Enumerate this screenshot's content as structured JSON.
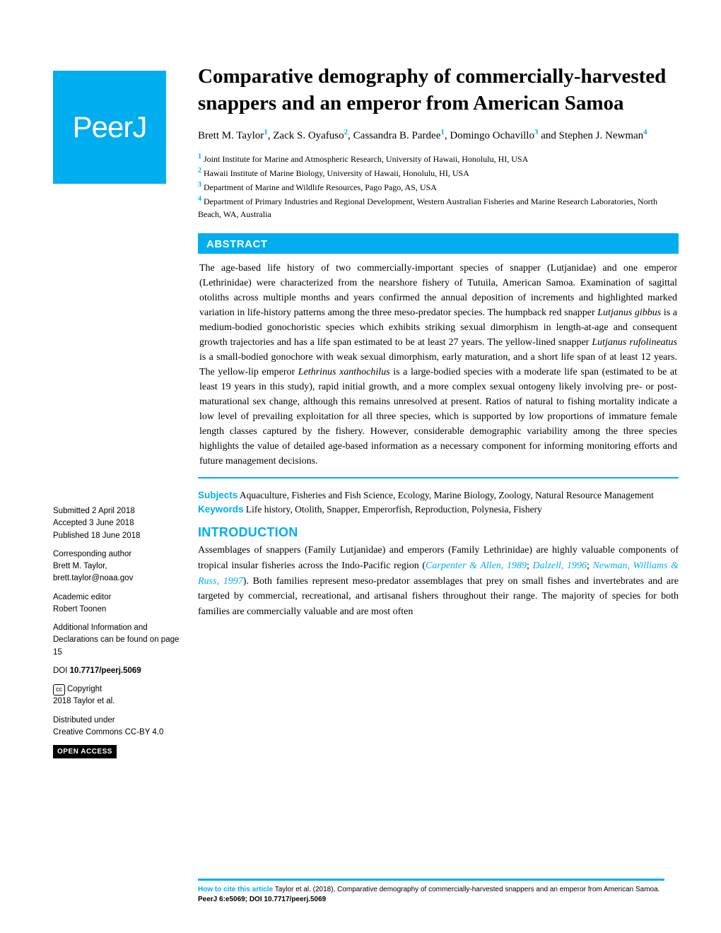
{
  "journal": {
    "logo_text": "PeerJ",
    "brand_color": "#00aeef"
  },
  "title": "Comparative demography of commercially-harvested snappers and an emperor from American Samoa",
  "authors_html": "Brett M. Taylor<sup>1</sup>, Zack S. Oyafuso<sup>2</sup>, Cassandra B. Pardee<sup>1</sup>, Domingo Ochavillo<sup>3</sup> and Stephen J. Newman<sup>4</sup>",
  "affiliations": [
    {
      "num": "1",
      "text": "Joint Institute for Marine and Atmospheric Research, University of Hawaii, Honolulu, HI, USA"
    },
    {
      "num": "2",
      "text": "Hawaii Institute of Marine Biology, University of Hawaii, Honolulu, HI, USA"
    },
    {
      "num": "3",
      "text": "Department of Marine and Wildlife Resources, Pago Pago, AS, USA"
    },
    {
      "num": "4",
      "text": "Department of Primary Industries and Regional Development, Western Australian Fisheries and Marine Research Laboratories, North Beach, WA, Australia"
    }
  ],
  "abstract": {
    "header": "ABSTRACT",
    "text": "The age-based life history of two commercially-important species of snapper (Lutjanidae) and one emperor (Lethrinidae) were characterized from the nearshore fishery of Tutuila, American Samoa. Examination of sagittal otoliths across multiple months and years confirmed the annual deposition of increments and highlighted marked variation in life-history patterns among the three meso-predator species. The humpback red snapper Lutjanus gibbus is a medium-bodied gonochoristic species which exhibits striking sexual dimorphism in length-at-age and consequent growth trajectories and has a life span estimated to be at least 27 years. The yellow-lined snapper Lutjanus rufolineatus is a small-bodied gonochore with weak sexual dimorphism, early maturation, and a short life span of at least 12 years. The yellow-lip emperor Lethrinus xanthochilus is a large-bodied species with a moderate life span (estimated to be at least 19 years in this study), rapid initial growth, and a more complex sexual ontogeny likely involving pre- or post-maturational sex change, although this remains unresolved at present. Ratios of natural to fishing mortality indicate a low level of prevailing exploitation for all three species, which is supported by low proportions of immature female length classes captured by the fishery. However, considerable demographic variability among the three species highlights the value of detailed age-based information as a necessary component for informing monitoring efforts and future management decisions."
  },
  "subjects": {
    "label": "Subjects",
    "text": "Aquaculture, Fisheries and Fish Science, Ecology, Marine Biology, Zoology, Natural Resource Management"
  },
  "keywords": {
    "label": "Keywords",
    "text": "Life history, Otolith, Snapper, Emperorfish, Reproduction, Polynesia, Fishery"
  },
  "introduction": {
    "header": "INTRODUCTION",
    "text_pre": "Assemblages of snappers (Family Lutjanidae) and emperors (Family Lethrinidae) are highly valuable components of tropical insular fisheries across the Indo-Pacific region (",
    "ref1": "Carpenter & Allen, 1989",
    "sep1": "; ",
    "ref2": "Dalzell, 1996",
    "sep2": "; ",
    "ref3": "Newman, Williams & Russ, 1997",
    "text_post": "). Both families represent meso-predator assemblages that prey on small fishes and invertebrates and are targeted by commercial, recreational, and artisanal fishers throughout their range. The majority of species for both families are commercially valuable and are most often"
  },
  "sidebar": {
    "submitted_label": "Submitted",
    "submitted_date": "2 April 2018",
    "accepted_label": "Accepted",
    "accepted_date": "3 June 2018",
    "published_label": "Published",
    "published_date": "18 June 2018",
    "corresponding_label": "Corresponding author",
    "corresponding_name": "Brett M. Taylor,",
    "corresponding_email": "brett.taylor@noaa.gov",
    "editor_label": "Academic editor",
    "editor_name": "Robert Toonen",
    "additional_info": "Additional Information and Declarations can be found on page 15",
    "doi_label": "DOI",
    "doi": "10.7717/peerj.5069",
    "copyright_label": "Copyright",
    "copyright_text": "2018 Taylor et al.",
    "distributed_label": "Distributed under",
    "distributed_text": "Creative Commons CC-BY 4.0",
    "open_access": "OPEN ACCESS",
    "cc_symbol": "cc"
  },
  "footer": {
    "cite_label": "How to cite this article",
    "cite_text": "Taylor et al. (2018), Comparative demography of commercially-harvested snappers and an emperor from American Samoa. ",
    "cite_journal": "PeerJ 6:e5069; DOI 10.7717/peerj.5069"
  }
}
